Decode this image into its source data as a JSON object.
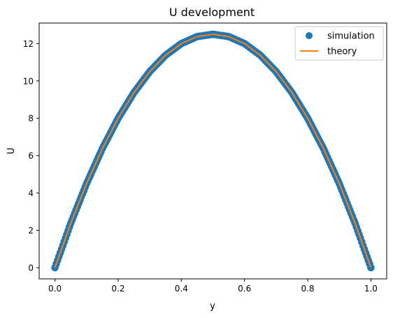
{
  "chart_data": {
    "type": "scatter",
    "title": "U development",
    "xlabel": "y",
    "ylabel": "U",
    "xlim": [
      -0.05,
      1.05
    ],
    "ylim": [
      -0.6,
      13.1
    ],
    "xticks": [
      0.0,
      0.2,
      0.4,
      0.6,
      0.8,
      1.0
    ],
    "xtick_labels": [
      "0.0",
      "0.2",
      "0.4",
      "0.6",
      "0.8",
      "1.0"
    ],
    "yticks": [
      0,
      2,
      4,
      6,
      8,
      10,
      12
    ],
    "ytick_labels": [
      "0",
      "2",
      "4",
      "6",
      "8",
      "10",
      "12"
    ],
    "grid": false,
    "legend_position": "top-right",
    "series": [
      {
        "name": "simulation",
        "kind": "markers",
        "color": "#1f77b4",
        "x": [
          0.0,
          0.05,
          0.1,
          0.15,
          0.2,
          0.25,
          0.3,
          0.35,
          0.4,
          0.45,
          0.5,
          0.55,
          0.6,
          0.65,
          0.7,
          0.75,
          0.8,
          0.85,
          0.9,
          0.95,
          1.0
        ],
        "y": [
          0.0,
          2.375,
          4.5,
          6.375,
          8.0,
          9.375,
          10.5,
          11.375,
          12.0,
          12.375,
          12.5,
          12.375,
          12.0,
          11.375,
          10.5,
          9.375,
          8.0,
          6.375,
          4.5,
          2.375,
          0.0
        ]
      },
      {
        "name": "theory",
        "kind": "line",
        "color": "#ff7f0e",
        "x": [
          0.0,
          0.05,
          0.1,
          0.15,
          0.2,
          0.25,
          0.3,
          0.35,
          0.4,
          0.45,
          0.5,
          0.55,
          0.6,
          0.65,
          0.7,
          0.75,
          0.8,
          0.85,
          0.9,
          0.95,
          1.0
        ],
        "y": [
          0.0,
          2.375,
          4.5,
          6.375,
          8.0,
          9.375,
          10.5,
          11.375,
          12.0,
          12.375,
          12.5,
          12.375,
          12.0,
          11.375,
          10.5,
          9.375,
          8.0,
          6.375,
          4.5,
          2.375,
          0.0
        ]
      }
    ]
  }
}
